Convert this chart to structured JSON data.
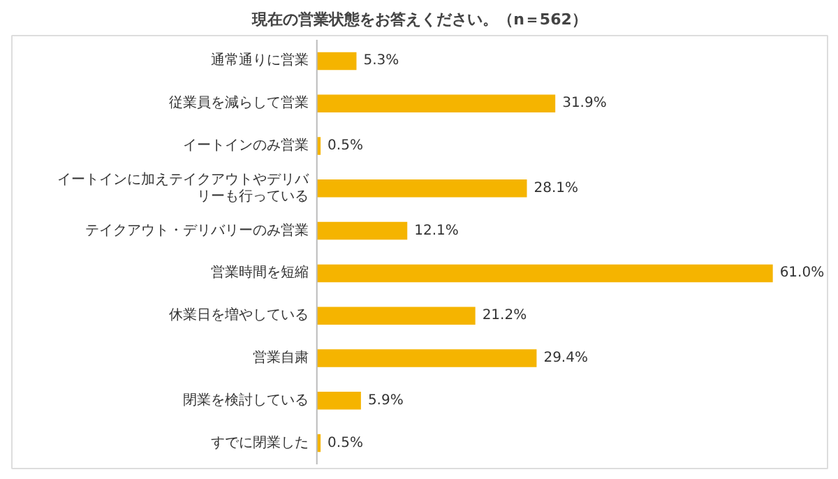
{
  "chart_data": {
    "type": "bar",
    "orientation": "horizontal",
    "title": "現在の営業状態をお答えください。（n＝562）",
    "categories": [
      "通常通りに営業",
      "従業員を減らして営業",
      "イートインのみ営業",
      "イートインに加えテイクアウトやデリバリーも行っている",
      "テイクアウト・デリバリーのみ営業",
      "営業時間を短縮",
      "休業日を増やしている",
      "営業自粛",
      "閉業を検討している",
      "すでに閉業した"
    ],
    "values": [
      5.3,
      31.9,
      0.5,
      28.1,
      12.1,
      61.0,
      21.2,
      29.4,
      5.9,
      0.5
    ],
    "value_labels": [
      "5.3%",
      "31.9%",
      "0.5%",
      "28.1%",
      "12.1%",
      "61.0%",
      "21.2%",
      "29.4%",
      "5.9%",
      "0.5%"
    ],
    "color": "#f5b400",
    "grid": false
  }
}
